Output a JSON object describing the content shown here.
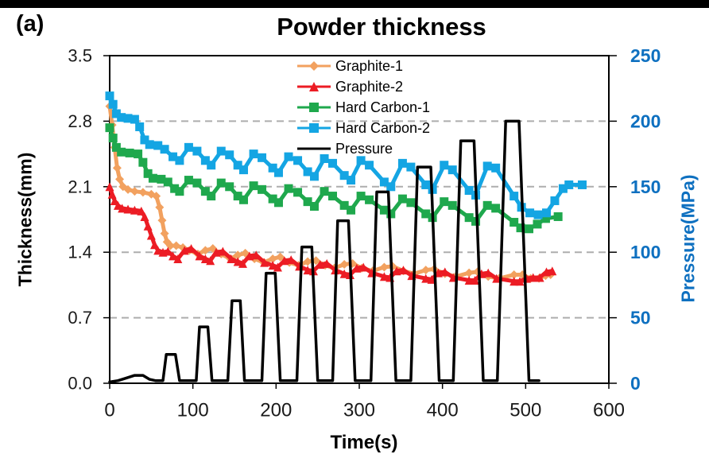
{
  "panel_label": "(a)",
  "colors": {
    "graphite1": "#F2A15F",
    "graphite2": "#EC1C24",
    "hardcarbon1": "#1FA84D",
    "hardcarbon2": "#14A5E3",
    "pressure": "#000000",
    "right_axis": "#0E70C0",
    "grid": "#ADADAD",
    "frame": "#000000",
    "tick_text": "#1A1A1A"
  },
  "chart_data": {
    "type": "line",
    "title": "Powder thickness",
    "xlabel": "Time(s)",
    "ylabel_left": "Thickness(mm)",
    "ylabel_right": "Pressure(MPa)",
    "x_range": [
      0,
      600
    ],
    "x_tick_values": [
      0,
      100,
      200,
      300,
      400,
      500,
      600
    ],
    "x_tick_labels": [
      "0",
      "100",
      "200",
      "300",
      "400",
      "500",
      "600"
    ],
    "y_left_range": [
      0,
      3.5
    ],
    "y_left_tick_values": [
      3.5,
      2.8,
      2.1,
      1.4,
      0.7,
      0.0
    ],
    "y_left_tick_labels": [
      "3.5",
      "2.8",
      "2.1",
      "1.4",
      "0.7",
      "0.0"
    ],
    "y_right_range": [
      0,
      250
    ],
    "y_right_tick_values": [
      250,
      200,
      150,
      100,
      50,
      0
    ],
    "y_right_tick_labels": [
      "250",
      "200",
      "150",
      "100",
      "50",
      "0"
    ],
    "grid_values_left": [
      2.8,
      2.1,
      1.4,
      0.7
    ],
    "grid_style": "dashed horizontal",
    "legend_position": "inside top-center",
    "series": [
      {
        "name": "Graphite-1",
        "axis": "left",
        "color": "#F2A15F",
        "marker": "diamond",
        "points": [
          [
            0,
            2.96
          ],
          [
            3,
            2.76
          ],
          [
            6,
            2.52
          ],
          [
            9,
            2.3
          ],
          [
            12,
            2.18
          ],
          [
            16,
            2.1
          ],
          [
            22,
            2.07
          ],
          [
            30,
            2.05
          ],
          [
            40,
            2.04
          ],
          [
            50,
            2.02
          ],
          [
            56,
            2.0
          ],
          [
            60,
            1.88
          ],
          [
            63,
            1.74
          ],
          [
            66,
            1.6
          ],
          [
            69,
            1.51
          ],
          [
            73,
            1.47
          ],
          [
            80,
            1.47
          ],
          [
            88,
            1.45
          ],
          [
            96,
            1.42
          ],
          [
            106,
            1.38
          ],
          [
            115,
            1.42
          ],
          [
            124,
            1.44
          ],
          [
            134,
            1.38
          ],
          [
            145,
            1.33
          ],
          [
            154,
            1.37
          ],
          [
            163,
            1.39
          ],
          [
            174,
            1.33
          ],
          [
            185,
            1.29
          ],
          [
            196,
            1.33
          ],
          [
            205,
            1.35
          ],
          [
            216,
            1.29
          ],
          [
            227,
            1.26
          ],
          [
            238,
            1.3
          ],
          [
            248,
            1.31
          ],
          [
            259,
            1.26
          ],
          [
            270,
            1.23
          ],
          [
            282,
            1.27
          ],
          [
            292,
            1.28
          ],
          [
            303,
            1.23
          ],
          [
            316,
            1.2
          ],
          [
            330,
            1.24
          ],
          [
            340,
            1.25
          ],
          [
            353,
            1.2
          ],
          [
            366,
            1.17
          ],
          [
            380,
            1.21
          ],
          [
            390,
            1.22
          ],
          [
            403,
            1.17
          ],
          [
            416,
            1.14
          ],
          [
            432,
            1.18
          ],
          [
            442,
            1.19
          ],
          [
            455,
            1.14
          ],
          [
            468,
            1.12
          ],
          [
            486,
            1.16
          ],
          [
            496,
            1.16
          ],
          [
            506,
            1.12
          ],
          [
            516,
            1.12
          ],
          [
            524,
            1.15
          ],
          [
            530,
            1.16
          ]
        ]
      },
      {
        "name": "Graphite-2",
        "axis": "left",
        "color": "#EC1C24",
        "marker": "triangle",
        "points": [
          [
            0,
            2.1
          ],
          [
            3,
            2.02
          ],
          [
            6,
            1.95
          ],
          [
            10,
            1.9
          ],
          [
            15,
            1.87
          ],
          [
            22,
            1.86
          ],
          [
            30,
            1.85
          ],
          [
            38,
            1.84
          ],
          [
            42,
            1.78
          ],
          [
            46,
            1.68
          ],
          [
            50,
            1.58
          ],
          [
            54,
            1.48
          ],
          [
            58,
            1.42
          ],
          [
            64,
            1.4
          ],
          [
            70,
            1.41
          ],
          [
            76,
            1.36
          ],
          [
            82,
            1.33
          ],
          [
            90,
            1.42
          ],
          [
            98,
            1.44
          ],
          [
            108,
            1.36
          ],
          [
            115,
            1.33
          ],
          [
            121,
            1.31
          ],
          [
            128,
            1.4
          ],
          [
            136,
            1.41
          ],
          [
            146,
            1.33
          ],
          [
            154,
            1.3
          ],
          [
            160,
            1.28
          ],
          [
            168,
            1.36
          ],
          [
            176,
            1.37
          ],
          [
            186,
            1.29
          ],
          [
            196,
            1.26
          ],
          [
            202,
            1.24
          ],
          [
            210,
            1.31
          ],
          [
            218,
            1.32
          ],
          [
            228,
            1.25
          ],
          [
            238,
            1.21
          ],
          [
            245,
            1.2
          ],
          [
            253,
            1.27
          ],
          [
            261,
            1.28
          ],
          [
            271,
            1.21
          ],
          [
            282,
            1.17
          ],
          [
            289,
            1.16
          ],
          [
            297,
            1.23
          ],
          [
            305,
            1.24
          ],
          [
            315,
            1.18
          ],
          [
            330,
            1.14
          ],
          [
            337,
            1.13
          ],
          [
            345,
            1.2
          ],
          [
            353,
            1.21
          ],
          [
            363,
            1.15
          ],
          [
            380,
            1.12
          ],
          [
            387,
            1.11
          ],
          [
            395,
            1.18
          ],
          [
            403,
            1.19
          ],
          [
            413,
            1.13
          ],
          [
            432,
            1.1
          ],
          [
            439,
            1.1
          ],
          [
            447,
            1.17
          ],
          [
            455,
            1.18
          ],
          [
            465,
            1.12
          ],
          [
            486,
            1.09
          ],
          [
            493,
            1.09
          ],
          [
            501,
            1.12
          ],
          [
            509,
            1.13
          ],
          [
            517,
            1.13
          ],
          [
            525,
            1.19
          ],
          [
            532,
            1.2
          ]
        ]
      },
      {
        "name": "Hard Carbon-1",
        "axis": "left",
        "color": "#1FA84D",
        "marker": "square",
        "points": [
          [
            0,
            2.73
          ],
          [
            4,
            2.62
          ],
          [
            8,
            2.52
          ],
          [
            14,
            2.47
          ],
          [
            24,
            2.46
          ],
          [
            34,
            2.45
          ],
          [
            40,
            2.36
          ],
          [
            46,
            2.24
          ],
          [
            52,
            2.19
          ],
          [
            62,
            2.18
          ],
          [
            70,
            2.15
          ],
          [
            78,
            2.08
          ],
          [
            84,
            2.05
          ],
          [
            95,
            2.17
          ],
          [
            105,
            2.14
          ],
          [
            115,
            2.05
          ],
          [
            122,
            2.0
          ],
          [
            134,
            2.14
          ],
          [
            144,
            2.1
          ],
          [
            154,
            2.0
          ],
          [
            161,
            1.96
          ],
          [
            173,
            2.11
          ],
          [
            183,
            2.07
          ],
          [
            196,
            1.97
          ],
          [
            203,
            1.93
          ],
          [
            215,
            2.08
          ],
          [
            226,
            2.04
          ],
          [
            238,
            1.94
          ],
          [
            246,
            1.89
          ],
          [
            258,
            2.05
          ],
          [
            268,
            2.0
          ],
          [
            282,
            1.9
          ],
          [
            290,
            1.85
          ],
          [
            302,
            2.0
          ],
          [
            312,
            1.96
          ],
          [
            330,
            1.85
          ],
          [
            338,
            1.81
          ],
          [
            352,
            1.97
          ],
          [
            362,
            1.93
          ],
          [
            380,
            1.81
          ],
          [
            388,
            1.77
          ],
          [
            402,
            1.94
          ],
          [
            412,
            1.9
          ],
          [
            432,
            1.77
          ],
          [
            440,
            1.73
          ],
          [
            454,
            1.9
          ],
          [
            464,
            1.87
          ],
          [
            486,
            1.72
          ],
          [
            494,
            1.66
          ],
          [
            504,
            1.65
          ],
          [
            514,
            1.7
          ],
          [
            524,
            1.76
          ],
          [
            539,
            1.78
          ]
        ]
      },
      {
        "name": "Hard Carbon-2",
        "axis": "left",
        "color": "#14A5E3",
        "marker": "square",
        "points": [
          [
            0,
            3.07
          ],
          [
            4,
            2.98
          ],
          [
            8,
            2.88
          ],
          [
            14,
            2.84
          ],
          [
            22,
            2.83
          ],
          [
            30,
            2.82
          ],
          [
            36,
            2.74
          ],
          [
            42,
            2.6
          ],
          [
            48,
            2.55
          ],
          [
            58,
            2.54
          ],
          [
            66,
            2.5
          ],
          [
            76,
            2.42
          ],
          [
            84,
            2.38
          ],
          [
            95,
            2.52
          ],
          [
            105,
            2.48
          ],
          [
            115,
            2.38
          ],
          [
            122,
            2.33
          ],
          [
            134,
            2.48
          ],
          [
            144,
            2.44
          ],
          [
            154,
            2.33
          ],
          [
            161,
            2.28
          ],
          [
            173,
            2.45
          ],
          [
            183,
            2.41
          ],
          [
            196,
            2.3
          ],
          [
            203,
            2.25
          ],
          [
            215,
            2.42
          ],
          [
            226,
            2.38
          ],
          [
            238,
            2.26
          ],
          [
            246,
            2.21
          ],
          [
            258,
            2.4
          ],
          [
            268,
            2.35
          ],
          [
            282,
            2.22
          ],
          [
            290,
            2.17
          ],
          [
            302,
            2.38
          ],
          [
            312,
            2.33
          ],
          [
            330,
            2.15
          ],
          [
            338,
            2.1
          ],
          [
            352,
            2.35
          ],
          [
            362,
            2.31
          ],
          [
            380,
            2.12
          ],
          [
            388,
            2.07
          ],
          [
            402,
            2.33
          ],
          [
            412,
            2.28
          ],
          [
            432,
            2.06
          ],
          [
            440,
            2.01
          ],
          [
            454,
            2.32
          ],
          [
            464,
            2.3
          ],
          [
            486,
            2.0
          ],
          [
            495,
            1.88
          ],
          [
            505,
            1.82
          ],
          [
            515,
            1.8
          ],
          [
            525,
            1.82
          ],
          [
            535,
            1.95
          ],
          [
            545,
            2.08
          ],
          [
            552,
            2.12
          ],
          [
            568,
            2.12
          ]
        ]
      },
      {
        "name": "Pressure",
        "axis": "right",
        "color": "#000000",
        "marker": "none",
        "points": [
          [
            0,
            1
          ],
          [
            10,
            2
          ],
          [
            20,
            4
          ],
          [
            30,
            6
          ],
          [
            40,
            6
          ],
          [
            48,
            3
          ],
          [
            55,
            2
          ],
          [
            64,
            2
          ],
          [
            68,
            22
          ],
          [
            79,
            22
          ],
          [
            84,
            2
          ],
          [
            104,
            2
          ],
          [
            108,
            43
          ],
          [
            118,
            43
          ],
          [
            123,
            2
          ],
          [
            142,
            2
          ],
          [
            147,
            63
          ],
          [
            157,
            63
          ],
          [
            162,
            2
          ],
          [
            183,
            2
          ],
          [
            188,
            84
          ],
          [
            199,
            84
          ],
          [
            205,
            2
          ],
          [
            225,
            2
          ],
          [
            231,
            104
          ],
          [
            243,
            104
          ],
          [
            250,
            2
          ],
          [
            268,
            2
          ],
          [
            274,
            124
          ],
          [
            287,
            124
          ],
          [
            295,
            2
          ],
          [
            314,
            2
          ],
          [
            321,
            146
          ],
          [
            335,
            146
          ],
          [
            344,
            2
          ],
          [
            362,
            2
          ],
          [
            370,
            165
          ],
          [
            386,
            165
          ],
          [
            396,
            2
          ],
          [
            413,
            2
          ],
          [
            422,
            185
          ],
          [
            438,
            185
          ],
          [
            449,
            2
          ],
          [
            466,
            2
          ],
          [
            476,
            200
          ],
          [
            492,
            200
          ],
          [
            504,
            2
          ],
          [
            516,
            2
          ]
        ]
      }
    ]
  }
}
